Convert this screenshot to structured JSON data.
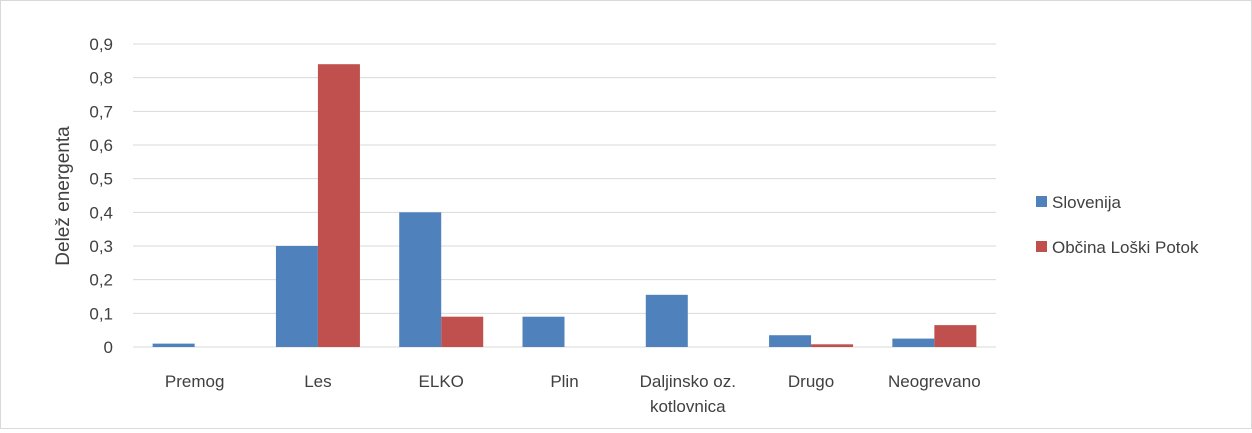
{
  "chart_data": {
    "type": "bar",
    "categories": [
      "Premog",
      "Les",
      "ELKO",
      "Plin",
      "Daljinsko oz. kotlovnica",
      "Drugo",
      "Neogrevano"
    ],
    "category_lines": [
      [
        "Premog"
      ],
      [
        "Les"
      ],
      [
        "ELKO"
      ],
      [
        "Plin"
      ],
      [
        "Daljinsko oz.",
        "kotlovnica"
      ],
      [
        "Drugo"
      ],
      [
        "Neogrevano"
      ]
    ],
    "series": [
      {
        "name": "Slovenija",
        "color": "#4f81bd",
        "values": [
          0.01,
          0.3,
          0.4,
          0.09,
          0.155,
          0.035,
          0.025
        ]
      },
      {
        "name": "Občina Loški Potok",
        "color": "#c0504d",
        "values": [
          0.0,
          0.84,
          0.09,
          0.0,
          0.0,
          0.008,
          0.065
        ]
      }
    ],
    "title": "",
    "xlabel": "",
    "ylabel": "Delež energenta",
    "ylim": [
      0,
      0.9
    ],
    "yticks": [
      0,
      0.1,
      0.2,
      0.3,
      0.4,
      0.5,
      0.6,
      0.7,
      0.8,
      0.9
    ],
    "ytick_labels": [
      "0",
      "0,1",
      "0,2",
      "0,3",
      "0,4",
      "0,5",
      "0,6",
      "0,7",
      "0,8",
      "0,9"
    ],
    "grid": true,
    "legend_position": "right",
    "gridline_color": "#d9d9d9"
  }
}
